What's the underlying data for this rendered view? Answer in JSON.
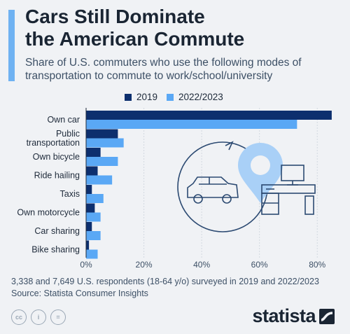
{
  "header": {
    "title": "Cars Still Dominate\nthe American Commute",
    "subtitle": "Share of U.S. commuters who use the following modes of transportation to commute to work/school/university"
  },
  "colors": {
    "accent": "#6fb2f2",
    "series_2019": "#0d2f6e",
    "series_2022": "#5aa8f5",
    "illustration": "#2c4a72"
  },
  "chart_data": {
    "type": "bar",
    "orientation": "horizontal",
    "categories": [
      "Own car",
      "Public\ntransportation",
      "Own bicycle",
      "Ride hailing",
      "Taxis",
      "Own motorcycle",
      "Car sharing",
      "Bike sharing"
    ],
    "series": [
      {
        "name": "2019",
        "values": [
          85,
          11,
          5,
          4,
          2,
          3,
          2,
          1
        ]
      },
      {
        "name": "2022/2023",
        "values": [
          73,
          13,
          11,
          9,
          6,
          5,
          5,
          4
        ]
      }
    ],
    "x_ticks": [
      "0%",
      "20%",
      "40%",
      "60%",
      "80%"
    ],
    "xlim": [
      0,
      86
    ],
    "legend": "top"
  },
  "notes": {
    "respondents": "3,338 and 7,649 U.S. respondents (18-64 y/o) surveyed in 2019 and 2022/2023",
    "source": "Source: Statista Consumer Insights"
  },
  "footer": {
    "license_icons": [
      "cc-icon",
      "by-icon",
      "nd-icon"
    ],
    "license_labels": [
      "cc",
      "i",
      "="
    ],
    "brand": "statista"
  }
}
